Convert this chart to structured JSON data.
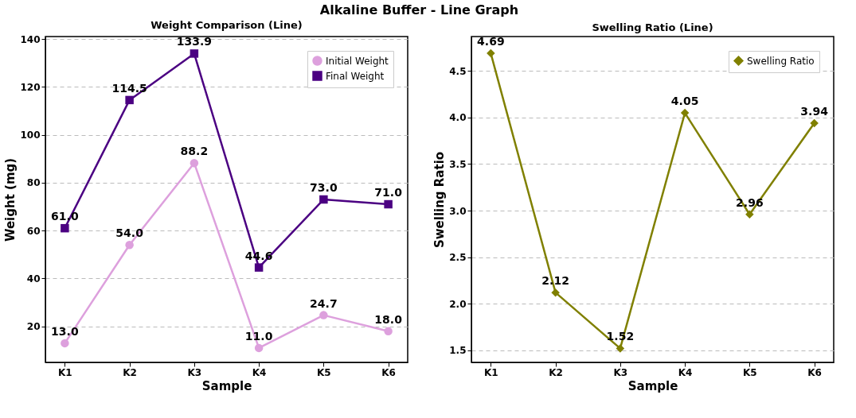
{
  "chart_data": [
    {
      "type": "line",
      "title": "Weight Comparison (Line)",
      "xlabel": "Sample",
      "ylabel": "Weight (mg)",
      "annotations": [
        "Alkaline Buffer - Line Graph"
      ],
      "categories": [
        "K1",
        "K2",
        "K3",
        "K4",
        "K5",
        "K6"
      ],
      "series": [
        {
          "name": "Initial Weight",
          "color": "#dda0dd",
          "marker": "circle",
          "values": [
            13.0,
            54.0,
            88.2,
            11.0,
            24.7,
            18.0
          ],
          "value_labels": [
            "13.0",
            "54.0",
            "88.2",
            "11.0",
            "24.7",
            "18.0"
          ]
        },
        {
          "name": "Final Weight",
          "color": "#4b0082",
          "marker": "square",
          "values": [
            61.0,
            114.5,
            133.9,
            44.6,
            73.0,
            71.0
          ],
          "value_labels": [
            "61.0",
            "114.5",
            "133.9",
            "44.6",
            "73.0",
            "71.0"
          ]
        }
      ],
      "ylim": [
        5,
        141
      ],
      "yticks": [
        20,
        40,
        60,
        80,
        100,
        120,
        140
      ],
      "grid": "y",
      "legend": "top right",
      "line_style": "solid"
    },
    {
      "type": "line",
      "title": "Swelling Ratio (Line)",
      "xlabel": "Sample",
      "ylabel": "Swelling Ratio",
      "categories": [
        "K1",
        "K2",
        "K3",
        "K4",
        "K5",
        "K6"
      ],
      "series": [
        {
          "name": "Swelling Ratio",
          "color": "#808000",
          "marker": "diamond",
          "values": [
            4.69,
            2.12,
            1.52,
            4.05,
            2.96,
            3.94
          ],
          "value_labels": [
            "4.69",
            "2.12",
            "1.52",
            "4.05",
            "2.96",
            "3.94"
          ]
        }
      ],
      "ylim": [
        1.37,
        4.87
      ],
      "yticks": [
        {
          "value": 1.5,
          "label": "1.5"
        },
        {
          "value": 2,
          "label": "2.0"
        },
        {
          "value": 2.5,
          "label": "2.5"
        },
        {
          "value": 3,
          "label": "3.0"
        },
        {
          "value": 3.5,
          "label": "3.5"
        },
        {
          "value": 4,
          "label": "4.0"
        },
        {
          "value": 4.5,
          "label": "4.5"
        }
      ],
      "grid": "y",
      "legend": "top right",
      "line_style": "solid"
    }
  ]
}
